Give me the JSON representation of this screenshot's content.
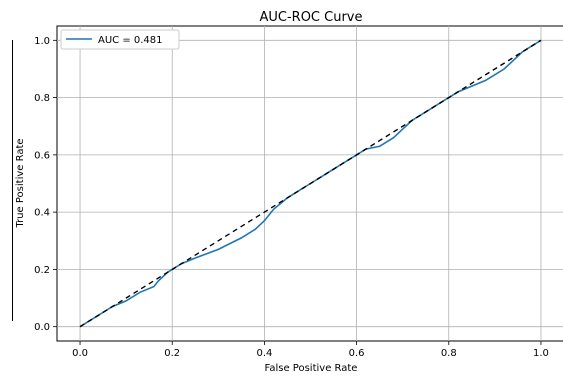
{
  "chart_data": {
    "type": "line",
    "title": "AUC-ROC Curve",
    "xlabel": "False Positive Rate",
    "ylabel": "True Positive Rate",
    "xlim": [
      -0.05,
      1.05
    ],
    "ylim": [
      -0.05,
      1.05
    ],
    "x_ticks": [
      0.0,
      0.2,
      0.4,
      0.6,
      0.8,
      1.0
    ],
    "y_ticks": [
      0.0,
      0.2,
      0.4,
      0.6,
      0.8,
      1.0
    ],
    "x_tick_labels": [
      "0.0",
      "0.2",
      "0.4",
      "0.6",
      "0.8",
      "1.0"
    ],
    "y_tick_labels": [
      "0.0",
      "0.2",
      "0.4",
      "0.6",
      "0.8",
      "1.0"
    ],
    "grid": true,
    "legend_position": "top-left",
    "series": [
      {
        "name": "AUC = 0.481",
        "color": "#1f77b4",
        "style": "solid",
        "x": [
          0.0,
          0.01,
          0.03,
          0.06,
          0.07,
          0.1,
          0.13,
          0.16,
          0.17,
          0.19,
          0.22,
          0.25,
          0.3,
          0.35,
          0.38,
          0.4,
          0.42,
          0.45,
          0.48,
          0.5,
          0.53,
          0.55,
          0.58,
          0.6,
          0.62,
          0.65,
          0.68,
          0.7,
          0.72,
          0.75,
          0.8,
          0.82,
          0.85,
          0.88,
          0.9,
          0.92,
          0.94,
          0.96,
          0.98,
          1.0
        ],
        "y": [
          0.0,
          0.01,
          0.03,
          0.06,
          0.07,
          0.09,
          0.12,
          0.14,
          0.16,
          0.19,
          0.22,
          0.24,
          0.27,
          0.31,
          0.34,
          0.37,
          0.41,
          0.45,
          0.48,
          0.5,
          0.53,
          0.55,
          0.58,
          0.6,
          0.62,
          0.63,
          0.66,
          0.69,
          0.72,
          0.75,
          0.8,
          0.82,
          0.84,
          0.86,
          0.88,
          0.9,
          0.93,
          0.96,
          0.98,
          1.0
        ]
      },
      {
        "name": "",
        "color": "#000000",
        "style": "dashed",
        "x": [
          0.0,
          1.0
        ],
        "y": [
          0.0,
          1.0
        ]
      }
    ]
  }
}
